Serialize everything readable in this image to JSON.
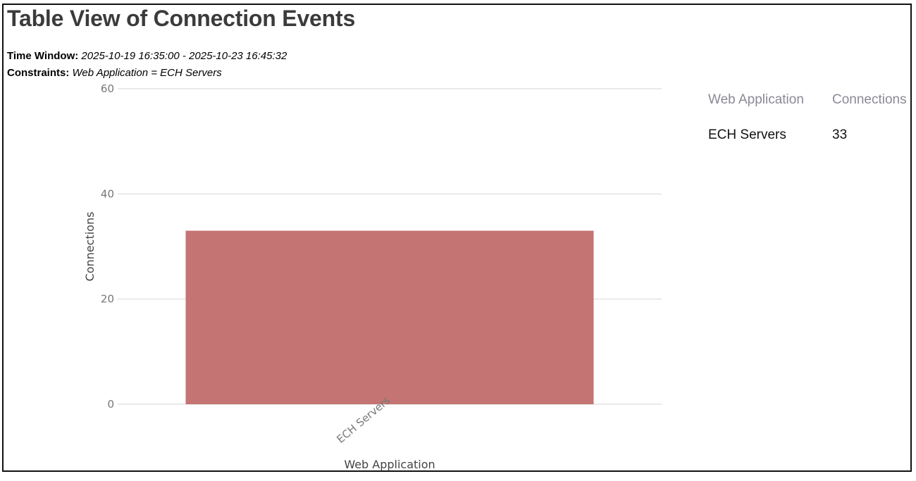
{
  "page": {
    "title": "Table View of Connection Events",
    "time_window_label": "Time Window:",
    "time_window_value": "2025-10-19 16:35:00 - 2025-10-23 16:45:32",
    "constraints_label": "Constraints:",
    "constraints_value": "Web Application = ECH Servers"
  },
  "table": {
    "headers": [
      "Web Application",
      "Connections"
    ],
    "rows": [
      [
        "ECH Servers",
        "33"
      ]
    ]
  },
  "colors": {
    "bar": "#c47473",
    "grid": "#e2e2e2",
    "axis_text": "#777777",
    "axis_title": "#444444"
  },
  "chart_data": {
    "type": "bar",
    "categories": [
      "ECH Servers"
    ],
    "values": [
      33
    ],
    "xlabel": "Web Application",
    "ylabel": "Connections",
    "ylim": [
      0,
      60
    ],
    "yticks": [
      0,
      20,
      40,
      60
    ],
    "grid": true
  }
}
